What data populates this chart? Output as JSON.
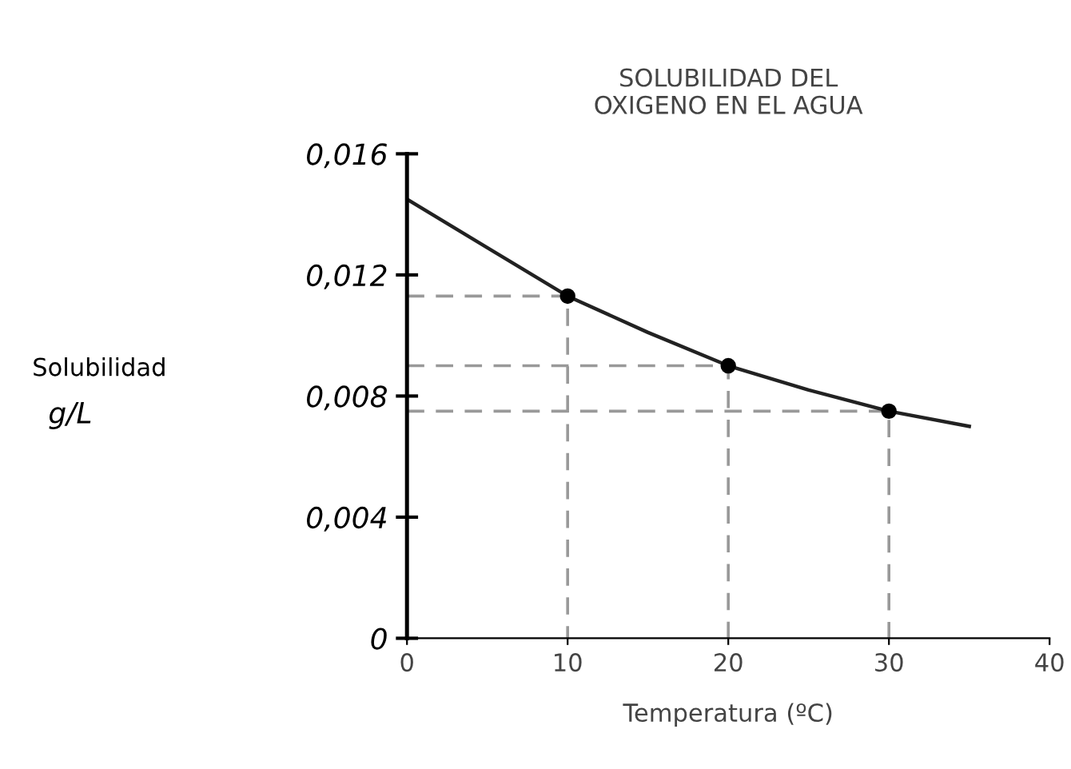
{
  "chart_data": {
    "type": "line",
    "title": "SOLUBILIDAD DEL\nOXIGENO EN EL AGUA",
    "xlabel": "Temperatura (ºC)",
    "annotations": [
      "Solubilidad",
      "g/L"
    ],
    "xlim": [
      0,
      40
    ],
    "xticks": [
      0,
      10,
      20,
      30,
      40
    ],
    "ylim": [
      0,
      0.016
    ],
    "yticks": [
      {
        "value": 0,
        "label": "0"
      },
      {
        "value": 0.004,
        "label": "0,004"
      },
      {
        "value": 0.008,
        "label": "0,008"
      },
      {
        "value": 0.012,
        "label": "0,012"
      },
      {
        "value": 0.016,
        "label": "0,016"
      }
    ],
    "grid": false,
    "legend": false,
    "series": [
      {
        "color": "#222222",
        "line_style": "solid",
        "marker": "none",
        "x": [
          0,
          5,
          10,
          15,
          20,
          25,
          30,
          35
        ],
        "values": [
          0.0145,
          0.0129,
          0.0113,
          0.0101,
          0.009,
          0.0082,
          0.0075,
          0.007
        ]
      },
      {
        "color": "#999999",
        "line_style": "dashed",
        "marker": "none",
        "x": [
          0,
          10,
          10
        ],
        "values": [
          0.0113,
          0.0113,
          0
        ]
      },
      {
        "color": "#999999",
        "line_style": "dashed",
        "marker": "none",
        "x": [
          0,
          20,
          20
        ],
        "values": [
          0.009,
          0.009,
          0
        ]
      },
      {
        "color": "#999999",
        "line_style": "dashed",
        "marker": "none",
        "x": [
          0,
          30,
          30
        ],
        "values": [
          0.0075,
          0.0075,
          0
        ]
      },
      {
        "type": "scatter",
        "color": "#000000",
        "marker": "circle",
        "x": [
          10,
          20,
          30
        ],
        "values": [
          0.0113,
          0.009,
          0.0075
        ]
      }
    ]
  }
}
